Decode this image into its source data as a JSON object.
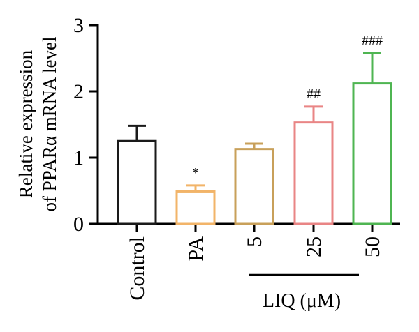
{
  "chart_data": {
    "type": "bar",
    "ylabel_line1": "Relative expression",
    "ylabel_line2": "of PPARα mRNA level",
    "ylim": [
      0,
      3
    ],
    "yticks": [
      "0",
      "1",
      "2",
      "3"
    ],
    "categories": [
      "Control",
      "PA",
      "5",
      "25",
      "50"
    ],
    "values": [
      1.25,
      0.49,
      1.13,
      1.53,
      2.12
    ],
    "errors": [
      0.23,
      0.09,
      0.08,
      0.24,
      0.46
    ],
    "colors": [
      "#1a1a1a",
      "#f2b469",
      "#c8a05a",
      "#e98585",
      "#4fb552"
    ],
    "annotations": [
      "",
      "*",
      "",
      "##",
      "###"
    ],
    "group_label": "LIQ (μM)",
    "grid": false
  }
}
